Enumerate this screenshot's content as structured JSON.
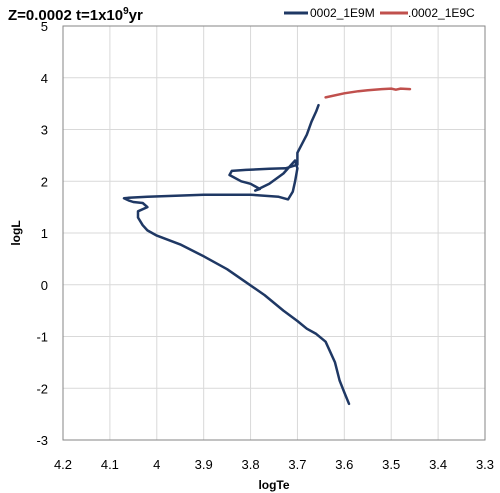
{
  "chart_data": {
    "type": "line",
    "title_main": "Z=0.0002 t=1x10",
    "title_exp": "9",
    "title_unit": "yr",
    "xlabel": "logTe",
    "ylabel": "logL",
    "xlim": [
      4.2,
      3.3
    ],
    "ylim": [
      -3,
      5
    ],
    "x_reversed": true,
    "grid": true,
    "legend_position": "top-right",
    "xticks": [
      "4.2",
      "4.1",
      "4",
      "3.9",
      "3.8",
      "3.7",
      "3.6",
      "3.5",
      "3.4",
      "3.3"
    ],
    "yticks": [
      "5",
      "4",
      "3",
      "2",
      "1",
      "0",
      "-1",
      "-2",
      "-3"
    ],
    "series": [
      {
        "name": "0002_1E9M",
        "color": "#1f3864",
        "points": [
          [
            3.59,
            -2.3
          ],
          [
            3.6,
            -2.08
          ],
          [
            3.61,
            -1.85
          ],
          [
            3.62,
            -1.5
          ],
          [
            3.64,
            -1.1
          ],
          [
            3.66,
            -0.95
          ],
          [
            3.68,
            -0.85
          ],
          [
            3.7,
            -0.7
          ],
          [
            3.73,
            -0.5
          ],
          [
            3.77,
            -0.2
          ],
          [
            3.81,
            0.05
          ],
          [
            3.85,
            0.3
          ],
          [
            3.9,
            0.55
          ],
          [
            3.95,
            0.78
          ],
          [
            4.0,
            0.95
          ],
          [
            4.02,
            1.05
          ],
          [
            4.03,
            1.15
          ],
          [
            4.04,
            1.3
          ],
          [
            4.04,
            1.42
          ],
          [
            4.02,
            1.5
          ],
          [
            4.03,
            1.58
          ],
          [
            4.05,
            1.6
          ],
          [
            4.06,
            1.63
          ],
          [
            4.07,
            1.67
          ],
          [
            4.06,
            1.68
          ],
          [
            4.02,
            1.7
          ],
          [
            3.9,
            1.74
          ],
          [
            3.8,
            1.74
          ],
          [
            3.74,
            1.7
          ],
          [
            3.72,
            1.65
          ],
          [
            3.71,
            1.8
          ],
          [
            3.705,
            2.0
          ],
          [
            3.7,
            2.25
          ],
          [
            3.705,
            2.4
          ],
          [
            3.73,
            2.15
          ],
          [
            3.76,
            1.95
          ],
          [
            3.79,
            1.82
          ],
          [
            3.78,
            1.85
          ],
          [
            3.8,
            1.95
          ],
          [
            3.82,
            2.0
          ],
          [
            3.845,
            2.12
          ],
          [
            3.84,
            2.2
          ],
          [
            3.81,
            2.22
          ],
          [
            3.76,
            2.24
          ],
          [
            3.725,
            2.25
          ],
          [
            3.7,
            2.32
          ],
          [
            3.7,
            2.55
          ],
          [
            3.68,
            2.9
          ],
          [
            3.67,
            3.15
          ],
          [
            3.66,
            3.35
          ],
          [
            3.655,
            3.47
          ]
        ]
      },
      {
        "name": ".0002_1E9C",
        "color": "#c0504d",
        "points": [
          [
            3.64,
            3.62
          ],
          [
            3.6,
            3.7
          ],
          [
            3.57,
            3.74
          ],
          [
            3.55,
            3.76
          ],
          [
            3.52,
            3.78
          ],
          [
            3.5,
            3.79
          ],
          [
            3.49,
            3.77
          ],
          [
            3.48,
            3.79
          ],
          [
            3.46,
            3.78
          ]
        ]
      }
    ]
  }
}
